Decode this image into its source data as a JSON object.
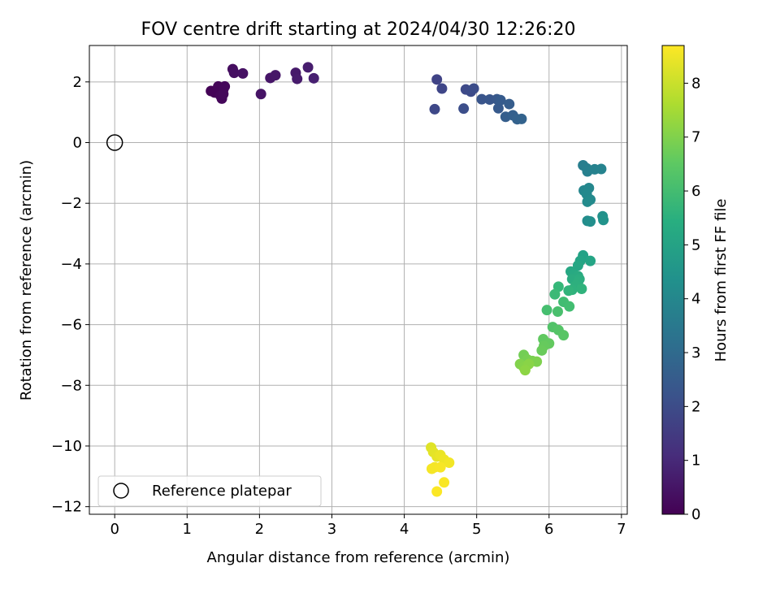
{
  "chart_data": {
    "type": "scatter",
    "title": "FOV centre drift starting at 2024/04/30 12:26:20",
    "xlabel": "Angular distance from reference (arcmin)",
    "ylabel": "Rotation from reference (arcmin)",
    "xlim": [
      -0.35,
      7.08
    ],
    "ylim": [
      -12.25,
      3.2
    ],
    "xticks": [
      0,
      1,
      2,
      3,
      4,
      5,
      6,
      7
    ],
    "yticks": [
      2,
      0,
      -2,
      -4,
      -6,
      -8,
      -10,
      -12
    ],
    "xtick_labels": [
      "0",
      "1",
      "2",
      "3",
      "4",
      "5",
      "6",
      "7"
    ],
    "ytick_labels": [
      "2",
      "0",
      "−2",
      "−4",
      "−6",
      "−8",
      "−10",
      "−12"
    ],
    "grid": true,
    "colormap": "viridis",
    "colorbar": {
      "label": "Hours from first FF file",
      "range": [
        0,
        8.7
      ],
      "ticks": [
        0,
        1,
        2,
        3,
        4,
        5,
        6,
        7,
        8
      ],
      "tick_labels": [
        "0",
        "1",
        "2",
        "3",
        "4",
        "5",
        "6",
        "7",
        "8"
      ]
    },
    "legend": {
      "entries": [
        "Reference platepar"
      ],
      "placement": "lower-left"
    },
    "reference_point": {
      "x": 0,
      "y": 0
    },
    "points": [
      {
        "x": 1.33,
        "y": 1.7,
        "t": 0.05
      },
      {
        "x": 1.38,
        "y": 1.65,
        "t": 0.08
      },
      {
        "x": 1.43,
        "y": 1.85,
        "t": 0.1
      },
      {
        "x": 1.5,
        "y": 1.75,
        "t": 0.12
      },
      {
        "x": 1.46,
        "y": 1.55,
        "t": 0.14
      },
      {
        "x": 1.48,
        "y": 1.45,
        "t": 0.16
      },
      {
        "x": 1.52,
        "y": 1.85,
        "t": 0.18
      },
      {
        "x": 1.5,
        "y": 1.6,
        "t": 0.2
      },
      {
        "x": 1.63,
        "y": 2.42,
        "t": 0.3
      },
      {
        "x": 1.65,
        "y": 2.3,
        "t": 0.35
      },
      {
        "x": 1.77,
        "y": 2.28,
        "t": 0.4
      },
      {
        "x": 2.02,
        "y": 1.6,
        "t": 0.45
      },
      {
        "x": 2.15,
        "y": 2.13,
        "t": 0.5
      },
      {
        "x": 2.22,
        "y": 2.22,
        "t": 0.55
      },
      {
        "x": 2.5,
        "y": 2.3,
        "t": 0.6
      },
      {
        "x": 2.52,
        "y": 2.1,
        "t": 0.65
      },
      {
        "x": 2.67,
        "y": 2.48,
        "t": 0.7
      },
      {
        "x": 2.75,
        "y": 2.12,
        "t": 0.78
      },
      {
        "x": 4.45,
        "y": 2.08,
        "t": 1.75
      },
      {
        "x": 4.52,
        "y": 1.78,
        "t": 1.85
      },
      {
        "x": 4.42,
        "y": 1.1,
        "t": 1.9
      },
      {
        "x": 4.85,
        "y": 1.75,
        "t": 1.95
      },
      {
        "x": 4.92,
        "y": 1.68,
        "t": 2.0
      },
      {
        "x": 4.96,
        "y": 1.78,
        "t": 2.05
      },
      {
        "x": 4.82,
        "y": 1.12,
        "t": 2.1
      },
      {
        "x": 5.07,
        "y": 1.43,
        "t": 2.3
      },
      {
        "x": 5.18,
        "y": 1.42,
        "t": 2.35
      },
      {
        "x": 5.28,
        "y": 1.43,
        "t": 2.4
      },
      {
        "x": 5.3,
        "y": 1.13,
        "t": 2.45
      },
      {
        "x": 5.33,
        "y": 1.4,
        "t": 2.5
      },
      {
        "x": 5.45,
        "y": 1.27,
        "t": 2.55
      },
      {
        "x": 5.4,
        "y": 0.85,
        "t": 2.6
      },
      {
        "x": 5.5,
        "y": 0.9,
        "t": 2.65
      },
      {
        "x": 5.56,
        "y": 0.77,
        "t": 2.7
      },
      {
        "x": 5.62,
        "y": 0.78,
        "t": 2.75
      },
      {
        "x": 6.47,
        "y": -0.75,
        "t": 3.7
      },
      {
        "x": 6.52,
        "y": -0.85,
        "t": 3.75
      },
      {
        "x": 6.53,
        "y": -0.95,
        "t": 3.8
      },
      {
        "x": 6.63,
        "y": -0.88,
        "t": 3.85
      },
      {
        "x": 6.72,
        "y": -0.87,
        "t": 3.9
      },
      {
        "x": 6.48,
        "y": -1.58,
        "t": 4.0
      },
      {
        "x": 6.55,
        "y": -1.5,
        "t": 4.05
      },
      {
        "x": 6.52,
        "y": -1.7,
        "t": 4.1
      },
      {
        "x": 6.57,
        "y": -1.88,
        "t": 4.15
      },
      {
        "x": 6.53,
        "y": -1.95,
        "t": 4.18
      },
      {
        "x": 6.53,
        "y": -2.58,
        "t": 4.25
      },
      {
        "x": 6.57,
        "y": -2.6,
        "t": 4.3
      },
      {
        "x": 6.74,
        "y": -2.43,
        "t": 4.4
      },
      {
        "x": 6.75,
        "y": -2.55,
        "t": 4.45
      },
      {
        "x": 6.47,
        "y": -3.72,
        "t": 5.0
      },
      {
        "x": 6.43,
        "y": -3.9,
        "t": 5.05
      },
      {
        "x": 6.57,
        "y": -3.9,
        "t": 5.1
      },
      {
        "x": 6.4,
        "y": -4.05,
        "t": 5.15
      },
      {
        "x": 6.3,
        "y": -4.25,
        "t": 5.2
      },
      {
        "x": 6.35,
        "y": -4.35,
        "t": 5.25
      },
      {
        "x": 6.4,
        "y": -4.4,
        "t": 5.3
      },
      {
        "x": 6.32,
        "y": -4.5,
        "t": 5.35
      },
      {
        "x": 6.42,
        "y": -4.5,
        "t": 5.4
      },
      {
        "x": 6.4,
        "y": -4.6,
        "t": 5.45
      },
      {
        "x": 6.37,
        "y": -4.7,
        "t": 5.5
      },
      {
        "x": 6.32,
        "y": -4.85,
        "t": 5.55
      },
      {
        "x": 6.45,
        "y": -4.82,
        "t": 5.6
      },
      {
        "x": 6.27,
        "y": -4.88,
        "t": 5.65
      },
      {
        "x": 6.13,
        "y": -4.75,
        "t": 5.8
      },
      {
        "x": 6.08,
        "y": -5.0,
        "t": 5.9
      },
      {
        "x": 6.2,
        "y": -5.25,
        "t": 6.0
      },
      {
        "x": 6.28,
        "y": -5.4,
        "t": 6.05
      },
      {
        "x": 5.97,
        "y": -5.52,
        "t": 6.1
      },
      {
        "x": 6.12,
        "y": -5.57,
        "t": 6.15
      },
      {
        "x": 6.05,
        "y": -6.08,
        "t": 6.3
      },
      {
        "x": 6.13,
        "y": -6.18,
        "t": 6.35
      },
      {
        "x": 6.2,
        "y": -6.35,
        "t": 6.4
      },
      {
        "x": 5.92,
        "y": -6.48,
        "t": 6.55
      },
      {
        "x": 6.0,
        "y": -6.62,
        "t": 6.6
      },
      {
        "x": 5.93,
        "y": -6.7,
        "t": 6.65
      },
      {
        "x": 5.9,
        "y": -6.85,
        "t": 6.7
      },
      {
        "x": 5.65,
        "y": -7.0,
        "t": 6.85
      },
      {
        "x": 5.7,
        "y": -7.15,
        "t": 6.9
      },
      {
        "x": 5.77,
        "y": -7.2,
        "t": 6.95
      },
      {
        "x": 5.83,
        "y": -7.22,
        "t": 7.0
      },
      {
        "x": 5.6,
        "y": -7.3,
        "t": 7.05
      },
      {
        "x": 5.65,
        "y": -7.4,
        "t": 7.1
      },
      {
        "x": 5.72,
        "y": -7.3,
        "t": 7.15
      },
      {
        "x": 5.67,
        "y": -7.5,
        "t": 7.2
      },
      {
        "x": 4.37,
        "y": -10.05,
        "t": 8.3
      },
      {
        "x": 4.4,
        "y": -10.2,
        "t": 8.35
      },
      {
        "x": 4.45,
        "y": -10.35,
        "t": 8.4
      },
      {
        "x": 4.5,
        "y": -10.3,
        "t": 8.45
      },
      {
        "x": 4.55,
        "y": -10.45,
        "t": 8.5
      },
      {
        "x": 4.62,
        "y": -10.55,
        "t": 8.55
      },
      {
        "x": 4.42,
        "y": -10.7,
        "t": 8.58
      },
      {
        "x": 4.38,
        "y": -10.75,
        "t": 8.6
      },
      {
        "x": 4.5,
        "y": -10.7,
        "t": 8.62
      },
      {
        "x": 4.55,
        "y": -11.2,
        "t": 8.65
      },
      {
        "x": 4.45,
        "y": -11.5,
        "t": 8.68
      }
    ]
  }
}
